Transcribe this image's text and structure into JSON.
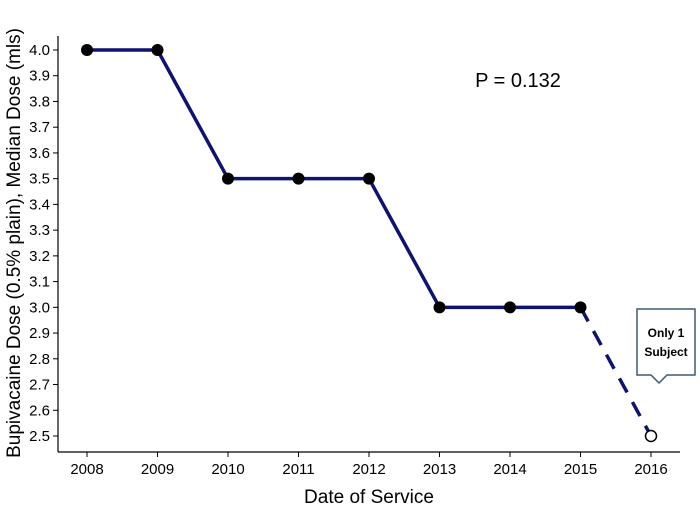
{
  "chart_data": {
    "type": "line",
    "x": [
      "2008",
      "2009",
      "2010",
      "2011",
      "2012",
      "2013",
      "2014",
      "2015",
      "2016"
    ],
    "series": [
      {
        "values": [
          4.0,
          4.0,
          3.5,
          3.5,
          3.5,
          3.0,
          3.0,
          3.0,
          2.5
        ]
      }
    ],
    "dashed_last_segment": true,
    "open_last_point": true,
    "xlabel": "Date of Service",
    "ylabel": "Bupivacaine Dose (0.5% plain), Median Dose (mls)",
    "ylim": [
      2.45,
      4.05
    ],
    "yticks": [
      "2.5",
      "2.6",
      "2.7",
      "2.8",
      "2.9",
      "3.0",
      "3.1",
      "3.2",
      "3.3",
      "3.4",
      "3.5",
      "3.6",
      "3.7",
      "3.8",
      "3.9",
      "4.0"
    ],
    "grid": false,
    "annotations": {
      "p_value": "P = 0.132",
      "callout_line1": "Only 1",
      "callout_line2": "Subject"
    },
    "colors": {
      "line": "#0d1370",
      "marker": "#000000",
      "callout_border": "#3d5a78"
    }
  }
}
